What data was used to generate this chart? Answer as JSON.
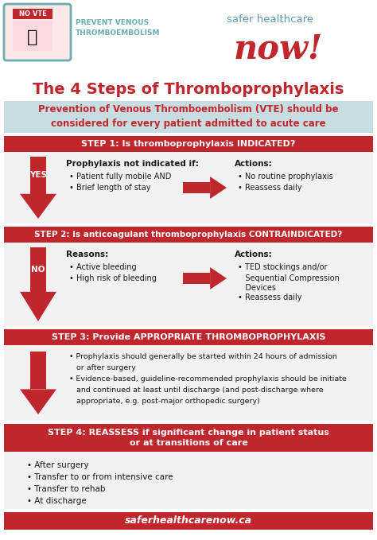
{
  "title": "The 4 Steps of Thromboprophylaxis",
  "intro_text": "Prevention of Venous Thromboembolism (VTE) should be\nconsidered for every patient admitted to acute care",
  "red": "#C0272D",
  "teal": "#6AACB0",
  "light_blue_bg": "#C8DDE2",
  "white": "#FFFFFF",
  "black": "#1A1A1A",
  "bg": "#F2F2F2",
  "steps": [
    {
      "header": "STEP 1: Is thromboprophylaxis INDICATED?",
      "arrow_label": "YES",
      "left_title": "Prophylaxis not indicated if:",
      "left_bullets": [
        "Patient fully mobile AND",
        "Brief length of stay"
      ],
      "right_title": "Actions:",
      "right_bullets": [
        "No routine prophylaxis",
        "Reassess daily"
      ]
    },
    {
      "header": "STEP 2: Is anticoagulant thromboprophylaxis CONTRAINDICATED?",
      "arrow_label": "NO",
      "left_title": "Reasons:",
      "left_bullets": [
        "Active bleeding",
        "High risk of bleeding"
      ],
      "right_title": "Actions:",
      "right_bullets": [
        "TED stockings and/or\nSequential Compression\nDevices",
        "Reassess daily"
      ]
    },
    {
      "header": "STEP 3: Provide APPROPRIATE THROMBOPROPHYLAXIS",
      "arrow_label": "",
      "left_title": "",
      "left_bullets": [
        "Prophylaxis should generally be started within 24 hours of admission\nor after surgery",
        "Evidence-based, guideline-recommended prophylaxis should be initiate\nand continued at least until discharge (and post-discharge where\nappropriate, e.g. post-major orthopedic surgery)"
      ],
      "right_title": "",
      "right_bullets": []
    },
    {
      "header": "STEP 4: REASSESS if significant change in patient status\nor at transitions of care",
      "arrow_label": "",
      "left_title": "",
      "left_bullets": [
        "After surgery",
        "Transfer to or from intensive care",
        "Transfer to rehab",
        "At discharge"
      ],
      "right_title": "",
      "right_bullets": []
    }
  ],
  "footer": "saferhealthcarenow.ca",
  "logo_text": "NO VTE",
  "logo_subtext": "PREVENT VENOUS\nTHROMBOEMBOLISM",
  "brand_text1": "safer healthcare",
  "brand_text2": "now!"
}
